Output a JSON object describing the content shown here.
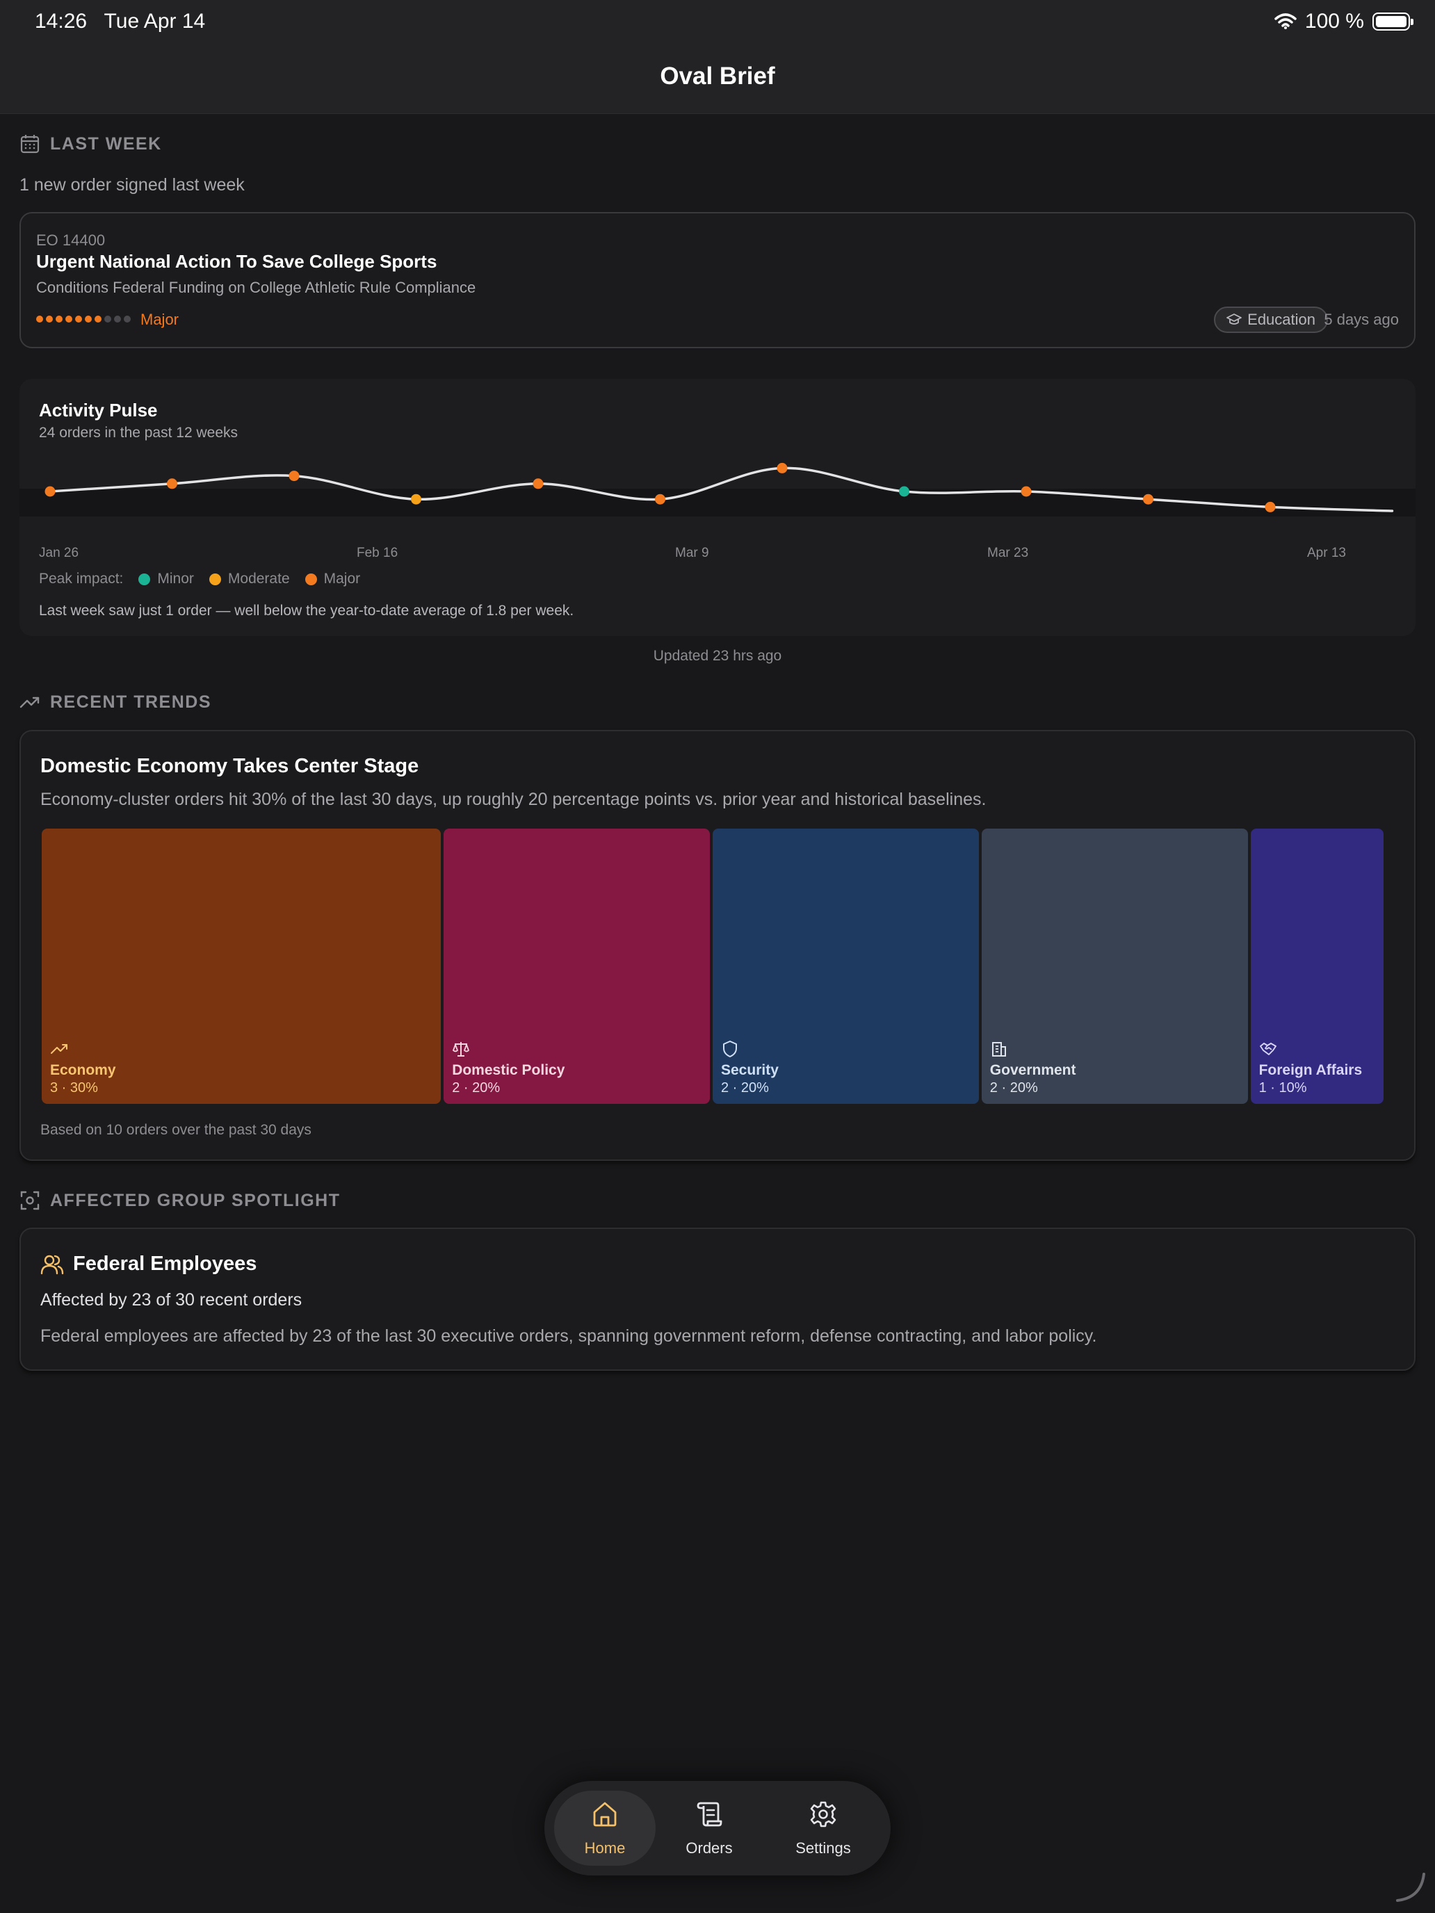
{
  "status_bar": {
    "time": "14:26",
    "date": "Tue Apr 14",
    "battery": "100 %"
  },
  "app": {
    "title": "Oval Brief"
  },
  "last_week": {
    "header": "LAST WEEK",
    "summary": "1 new order signed last week",
    "order": {
      "number": "EO 14400",
      "title": "Urgent National Action To Save College Sports",
      "subtitle": "Conditions Federal Funding on College Athletic Rule Compliance",
      "impact_level": 7,
      "impact_max": 10,
      "impact_label": "Major",
      "tag": "Education",
      "age": "5 days ago"
    }
  },
  "pulse": {
    "title": "Activity Pulse",
    "subtitle": "24 orders in the past 12 weeks",
    "x_labels": [
      "Jan 26",
      "Feb 16",
      "Mar 9",
      "Mar 23",
      "Apr 13"
    ],
    "legend_label": "Peak impact:",
    "legend": [
      {
        "name": "Minor",
        "color": "#1ab394"
      },
      {
        "name": "Moderate",
        "color": "#f5a21a"
      },
      {
        "name": "Major",
        "color": "#f47a20"
      }
    ],
    "note": "Last week saw just 1 order — well below the year-to-date average of 1.8 per week.",
    "updated": "Updated 23 hrs ago"
  },
  "chart_data": {
    "type": "line",
    "x": [
      "wk1",
      "wk2",
      "wk3",
      "wk4",
      "wk5",
      "wk6",
      "wk7",
      "wk8",
      "wk9",
      "wk10",
      "wk11",
      "wk12"
    ],
    "values": [
      2,
      2.4,
      2.8,
      1.6,
      2.4,
      1.6,
      3.2,
      2,
      2,
      1.6,
      1.2,
      1
    ],
    "peak_impact": [
      "Major",
      "Major",
      "Major",
      "Moderate",
      "Major",
      "Major",
      "Major",
      "Minor",
      "Major",
      "Major",
      "Major",
      ""
    ],
    "x_tick_labels": [
      "Jan 26",
      "Feb 16",
      "Mar 9",
      "Mar 23",
      "Apr 13"
    ]
  },
  "trends": {
    "header": "RECENT TRENDS",
    "title": "Domestic Economy Takes Center Stage",
    "description": "Economy-cluster orders hit 30% of the last 30 days, up roughly 20 percentage points vs. prior year and historical baselines.",
    "categories": [
      {
        "name": "Economy",
        "value": "3 · 30%",
        "share": 0.3,
        "color": "#7a3510",
        "text": "#f7c472",
        "icon": "trend-up-icon"
      },
      {
        "name": "Domestic Policy",
        "value": "2 · 20%",
        "share": 0.2,
        "color": "#841842",
        "text": "#f5d6df",
        "icon": "scales-icon"
      },
      {
        "name": "Security",
        "value": "2 · 20%",
        "share": 0.2,
        "color": "#1f3a60",
        "text": "#cfe0f5",
        "icon": "shield-icon"
      },
      {
        "name": "Government",
        "value": "2 · 20%",
        "share": 0.2,
        "color": "#394252",
        "text": "#dfe3ea",
        "icon": "building-icon"
      },
      {
        "name": "Foreign Affairs",
        "value": "1 · 10%",
        "share": 0.1,
        "color": "#322a80",
        "text": "#d9d5f7",
        "icon": "handshake-icon"
      }
    ],
    "footer": "Based on 10 orders over the past 30 days"
  },
  "spotlight": {
    "header": "AFFECTED GROUP SPOTLIGHT",
    "title": "Federal Employees",
    "stat": "Affected by 23 of 30 recent orders",
    "description": "Federal employees are affected by 23 of the last 30 executive orders, spanning government reform, defense contracting, and labor policy."
  },
  "tabs": [
    {
      "label": "Home",
      "icon": "home-icon",
      "active": true
    },
    {
      "label": "Orders",
      "icon": "scroll-icon",
      "active": false
    },
    {
      "label": "Settings",
      "icon": "gear-icon",
      "active": false
    }
  ]
}
